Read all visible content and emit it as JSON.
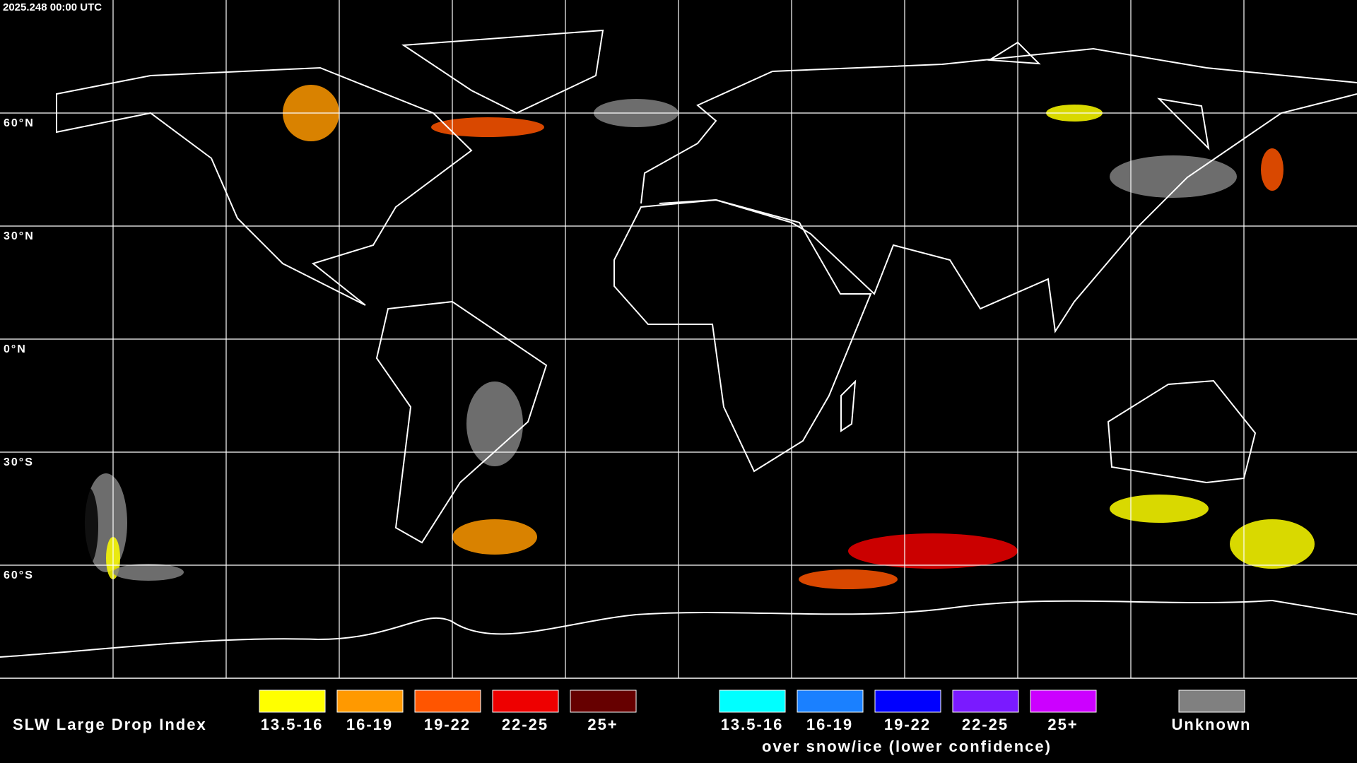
{
  "timestamp": "2025.248 00:00 UTC",
  "lat_labels": [
    "60°N",
    "30°N",
    "0°N",
    "30°S",
    "60°S"
  ],
  "legend": {
    "title": "SLW Large Drop Index",
    "groups": [
      {
        "items": [
          {
            "label": "13.5-16",
            "color": "#ffff00"
          },
          {
            "label": "16-19",
            "color": "#ff9900"
          },
          {
            "label": "19-22",
            "color": "#ff5500"
          },
          {
            "label": "22-25",
            "color": "#ee0000"
          },
          {
            "label": "25+",
            "color": "#660000"
          }
        ]
      },
      {
        "items": [
          {
            "label": "13.5-16",
            "color": "#00ffff"
          },
          {
            "label": "16-19",
            "color": "#1a80ff"
          },
          {
            "label": "19-22",
            "color": "#0000ff"
          },
          {
            "label": "22-25",
            "color": "#7a1aff"
          },
          {
            "label": "25+",
            "color": "#cc00ff"
          }
        ],
        "note": "over snow/ice (lower confidence)"
      },
      {
        "items": [
          {
            "label": "Unknown",
            "color": "#808080"
          }
        ]
      }
    ]
  }
}
